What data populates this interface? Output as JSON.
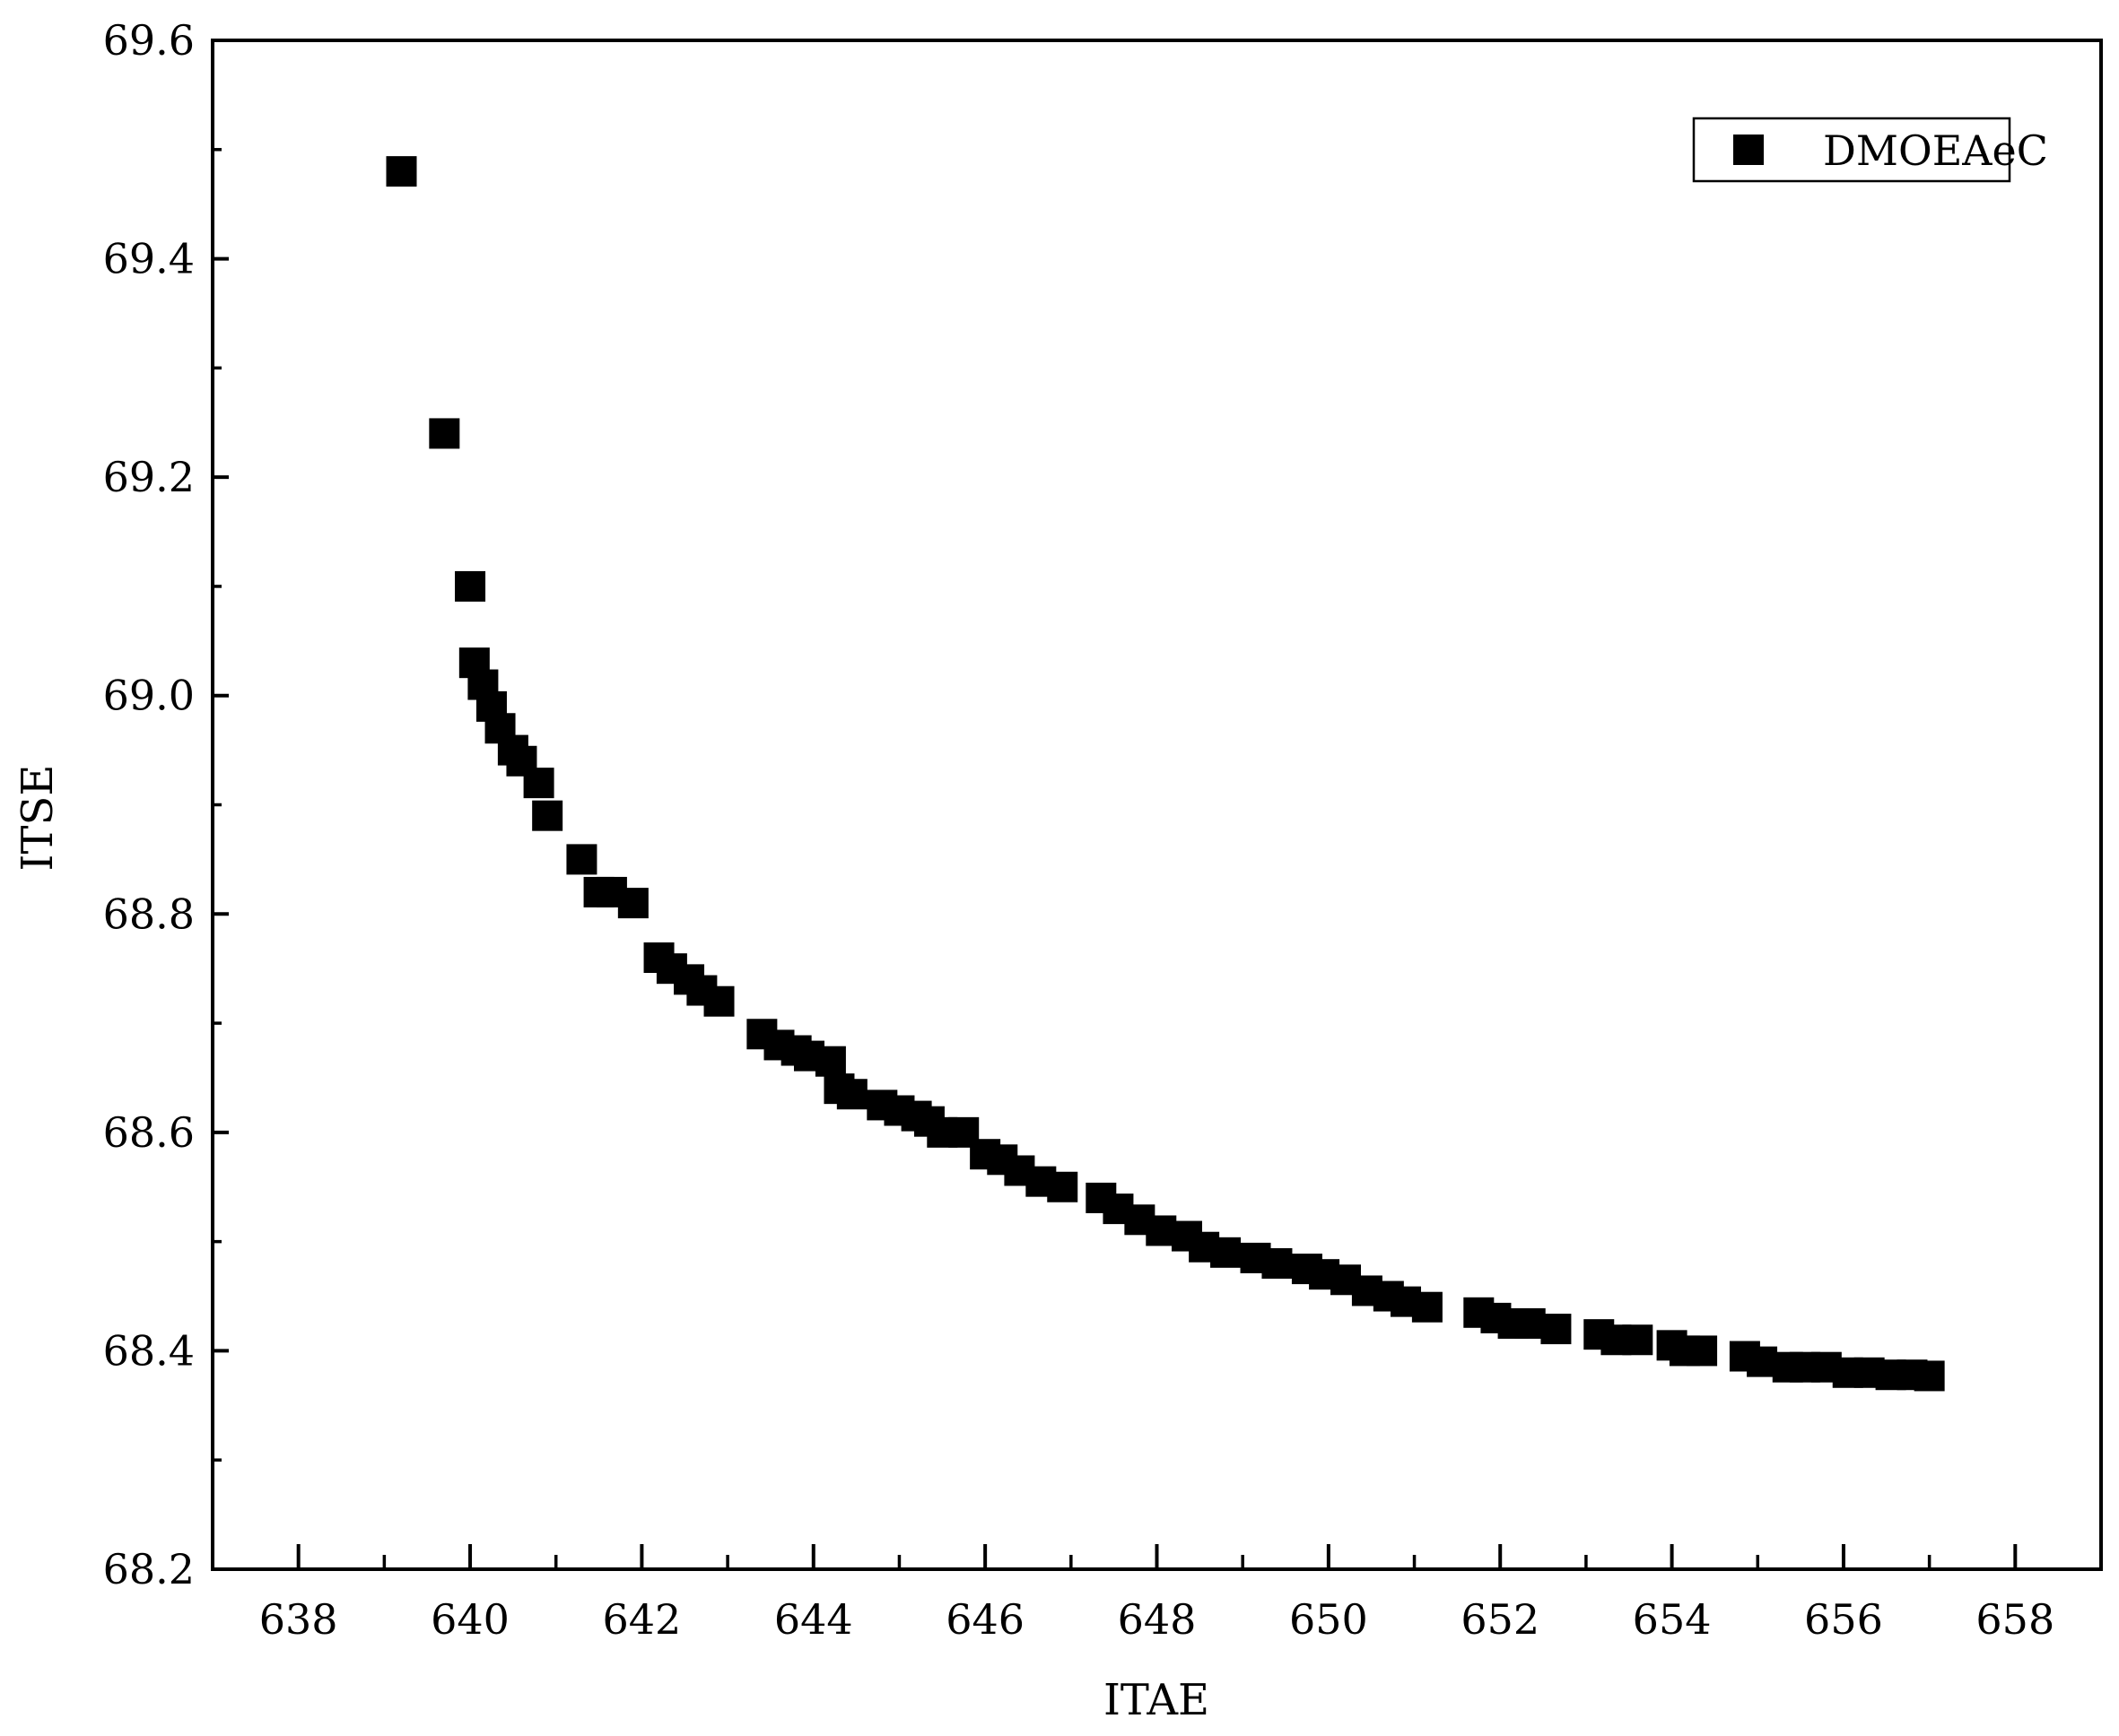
{
  "chart_data": {
    "type": "scatter",
    "title": "",
    "xlabel": "ITAE",
    "ylabel": "ITSE",
    "xlim": [
      637,
      659
    ],
    "ylim": [
      68.2,
      69.6
    ],
    "xticks": [
      638,
      640,
      642,
      644,
      646,
      648,
      650,
      652,
      654,
      656,
      658
    ],
    "xtick_labels": [
      "638",
      "640",
      "642",
      "644",
      "646",
      "648",
      "650",
      "652",
      "654",
      "656",
      "658"
    ],
    "yticks": [
      68.2,
      68.4,
      68.6,
      68.8,
      69.0,
      69.2,
      69.4,
      69.6
    ],
    "ytick_labels": [
      "68.2",
      "68.4",
      "68.6",
      "68.8",
      "69.0",
      "69.2",
      "69.4",
      "69.6"
    ],
    "grid": false,
    "legend_position": "top-right",
    "marker": "square",
    "marker_color": "#000000",
    "series": [
      {
        "name": "DMOEAeC",
        "points": [
          [
            639.2,
            69.48
          ],
          [
            639.7,
            69.24
          ],
          [
            640.0,
            69.1
          ],
          [
            640.05,
            69.03
          ],
          [
            640.15,
            69.01
          ],
          [
            640.25,
            68.99
          ],
          [
            640.35,
            68.97
          ],
          [
            640.5,
            68.95
          ],
          [
            640.6,
            68.94
          ],
          [
            640.8,
            68.92
          ],
          [
            640.9,
            68.89
          ],
          [
            641.3,
            68.85
          ],
          [
            641.5,
            68.82
          ],
          [
            641.65,
            68.82
          ],
          [
            641.9,
            68.81
          ],
          [
            642.2,
            68.76
          ],
          [
            642.35,
            68.75
          ],
          [
            642.55,
            68.74
          ],
          [
            642.7,
            68.73
          ],
          [
            642.9,
            68.72
          ],
          [
            643.4,
            68.69
          ],
          [
            643.6,
            68.68
          ],
          [
            643.8,
            68.675
          ],
          [
            643.95,
            68.67
          ],
          [
            644.2,
            68.665
          ],
          [
            644.3,
            68.64
          ],
          [
            644.45,
            68.635
          ],
          [
            644.8,
            68.625
          ],
          [
            645.0,
            68.62
          ],
          [
            645.2,
            68.615
          ],
          [
            645.35,
            68.61
          ],
          [
            645.5,
            68.6
          ],
          [
            645.75,
            68.6
          ],
          [
            646.0,
            68.58
          ],
          [
            646.2,
            68.575
          ],
          [
            646.4,
            68.565
          ],
          [
            646.65,
            68.555
          ],
          [
            646.9,
            68.55
          ],
          [
            647.35,
            68.54
          ],
          [
            647.55,
            68.53
          ],
          [
            647.8,
            68.52
          ],
          [
            648.05,
            68.51
          ],
          [
            648.35,
            68.505
          ],
          [
            648.55,
            68.495
          ],
          [
            648.8,
            68.49
          ],
          [
            649.15,
            68.485
          ],
          [
            649.4,
            68.48
          ],
          [
            649.75,
            68.475
          ],
          [
            649.95,
            68.47
          ],
          [
            650.2,
            68.465
          ],
          [
            650.45,
            68.455
          ],
          [
            650.7,
            68.45
          ],
          [
            650.9,
            68.445
          ],
          [
            651.15,
            68.44
          ],
          [
            651.75,
            68.435
          ],
          [
            651.95,
            68.43
          ],
          [
            652.15,
            68.425
          ],
          [
            652.35,
            68.425
          ],
          [
            652.65,
            68.42
          ],
          [
            653.15,
            68.415
          ],
          [
            653.35,
            68.41
          ],
          [
            653.6,
            68.41
          ],
          [
            654.0,
            68.405
          ],
          [
            654.15,
            68.4
          ],
          [
            654.35,
            68.4
          ],
          [
            654.85,
            68.395
          ],
          [
            655.05,
            68.39
          ],
          [
            655.35,
            68.385
          ],
          [
            655.55,
            68.385
          ],
          [
            655.8,
            68.385
          ],
          [
            656.05,
            68.38
          ],
          [
            656.3,
            68.38
          ],
          [
            656.55,
            68.378
          ],
          [
            656.8,
            68.378
          ],
          [
            657.0,
            68.377
          ]
        ]
      }
    ]
  }
}
